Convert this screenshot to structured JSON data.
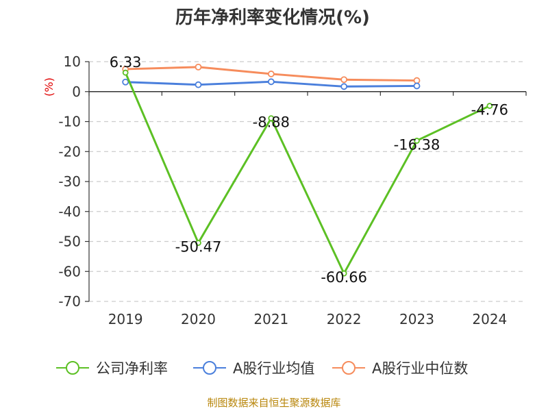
{
  "chart_data": {
    "type": "line",
    "title": "历年净利率变化情况(%)",
    "unit_label": "(%)",
    "categories": [
      "2019",
      "2020",
      "2021",
      "2022",
      "2023",
      "2024"
    ],
    "ylim": [
      -70,
      10
    ],
    "yticks": [
      10,
      0,
      -10,
      -20,
      -30,
      -40,
      -50,
      -60,
      -70
    ],
    "grid": true,
    "legend_position": "bottom",
    "series": [
      {
        "name": "公司净利率",
        "color": "#5cc024",
        "values": [
          6.33,
          -50.47,
          -8.88,
          -60.66,
          -16.38,
          -4.76
        ],
        "labels": [
          "6.33",
          "-50.47",
          "-8.88",
          "-60.66",
          "-16.38",
          "-4.76"
        ]
      },
      {
        "name": "A股行业均值",
        "color": "#4a7fdc",
        "values": [
          3.2,
          2.3,
          3.3,
          1.7,
          1.9,
          null
        ]
      },
      {
        "name": "A股行业中位数",
        "color": "#f68c5c",
        "values": [
          7.5,
          8.2,
          5.9,
          4.0,
          3.7,
          null
        ]
      }
    ],
    "source": "制图数据来自恒生聚源数据库"
  }
}
